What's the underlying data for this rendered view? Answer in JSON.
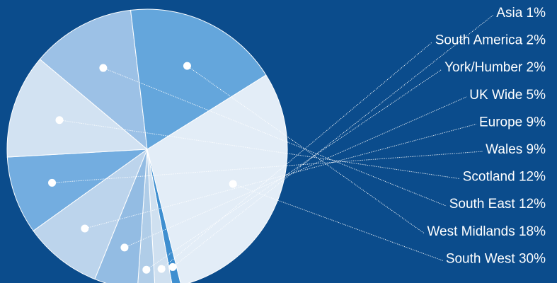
{
  "chart_data": {
    "type": "pie",
    "title": "",
    "slices": [
      {
        "label": "Asia 1%",
        "value": 1,
        "color": "#3f8fd0"
      },
      {
        "label": "South America 2%",
        "value": 2,
        "color": "#cfe0f0"
      },
      {
        "label": "York/Humber 2%",
        "value": 2,
        "color": "#b0cde8"
      },
      {
        "label": "UK Wide 5%",
        "value": 5,
        "color": "#93bce3"
      },
      {
        "label": "Europe 9%",
        "value": 9,
        "color": "#bcd4ec"
      },
      {
        "label": "Wales 9%",
        "value": 9,
        "color": "#73ade0"
      },
      {
        "label": "Scotland 12%",
        "value": 12,
        "color": "#d2e2f2"
      },
      {
        "label": "South East 12%",
        "value": 12,
        "color": "#9cc1e6"
      },
      {
        "label": "West Midlands 18%",
        "value": 18,
        "color": "#64a6dc"
      },
      {
        "label": "South West 30%",
        "value": 30,
        "color": "#e3edf7"
      }
    ],
    "background_color": "#0b4c8c",
    "slice_border_color": "#ffffff",
    "leader_line_color": "#ffffff",
    "legend_placement": "right"
  }
}
